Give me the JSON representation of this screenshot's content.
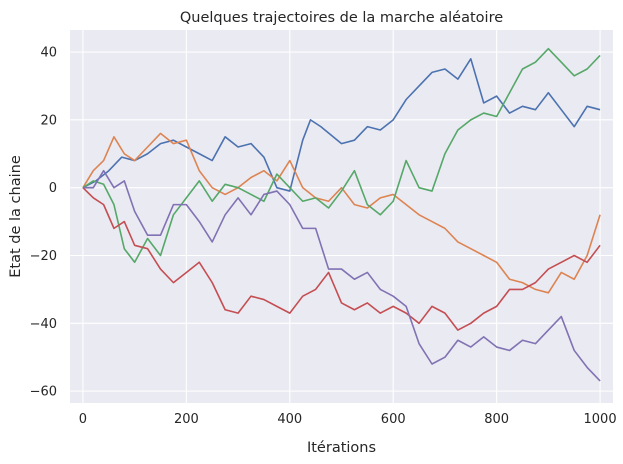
{
  "chart_data": {
    "type": "line",
    "title": "Quelques trajectoires de la marche aléatoire",
    "xlabel": "Itérations",
    "ylabel": "Etat de la chaine",
    "xlim": [
      -25,
      1025
    ],
    "ylim": [
      -63.5,
      46.5
    ],
    "xticks": [
      0,
      200,
      400,
      600,
      800,
      1000
    ],
    "yticks": [
      -60,
      -40,
      -20,
      0,
      20,
      40
    ],
    "grid": true,
    "legend": "none",
    "plot_background": "#eaeaf2",
    "series": [
      {
        "color": "#4c72b0",
        "x": [
          0,
          25,
          50,
          75,
          100,
          125,
          150,
          175,
          200,
          225,
          250,
          275,
          300,
          325,
          350,
          375,
          400,
          425,
          440,
          460,
          500,
          525,
          550,
          575,
          600,
          625,
          650,
          675,
          700,
          725,
          750,
          775,
          800,
          825,
          850,
          875,
          900,
          925,
          950,
          975,
          1000
        ],
        "y": [
          0,
          2,
          5,
          9,
          8,
          10,
          13,
          14,
          12,
          10,
          8,
          15,
          12,
          13,
          9,
          0,
          -1,
          14,
          20,
          18,
          13,
          14,
          18,
          17,
          20,
          26,
          30,
          34,
          35,
          32,
          38,
          25,
          27,
          22,
          24,
          23,
          28,
          23,
          18,
          24,
          23
        ]
      },
      {
        "color": "#dd8452",
        "x": [
          0,
          20,
          40,
          60,
          80,
          100,
          125,
          150,
          175,
          200,
          225,
          250,
          275,
          300,
          325,
          350,
          375,
          400,
          425,
          450,
          475,
          500,
          525,
          550,
          575,
          600,
          625,
          650,
          675,
          700,
          725,
          750,
          775,
          800,
          825,
          850,
          875,
          900,
          925,
          950,
          975,
          1000
        ],
        "y": [
          0,
          5,
          8,
          15,
          10,
          8,
          12,
          16,
          13,
          14,
          5,
          0,
          -2,
          0,
          3,
          5,
          2,
          8,
          0,
          -3,
          -4,
          0,
          -5,
          -6,
          -3,
          -2,
          -5,
          -8,
          -10,
          -12,
          -16,
          -18,
          -20,
          -22,
          -27,
          -28,
          -30,
          -31,
          -25,
          -27,
          -20,
          -8
        ]
      },
      {
        "color": "#55a868",
        "x": [
          0,
          20,
          40,
          60,
          80,
          100,
          125,
          150,
          175,
          200,
          225,
          250,
          275,
          300,
          325,
          350,
          375,
          400,
          425,
          450,
          475,
          500,
          525,
          550,
          575,
          600,
          625,
          650,
          675,
          700,
          725,
          750,
          775,
          800,
          825,
          850,
          875,
          900,
          925,
          950,
          975,
          1000
        ],
        "y": [
          0,
          2,
          1,
          -5,
          -18,
          -22,
          -15,
          -20,
          -8,
          -3,
          2,
          -4,
          1,
          0,
          -2,
          -4,
          4,
          0,
          -4,
          -3,
          -6,
          -1,
          5,
          -5,
          -8,
          -4,
          8,
          0,
          -1,
          10,
          17,
          20,
          22,
          21,
          28,
          35,
          37,
          41,
          37,
          33,
          35,
          39
        ]
      },
      {
        "color": "#c44e52",
        "x": [
          0,
          20,
          40,
          60,
          80,
          100,
          125,
          150,
          175,
          200,
          225,
          250,
          275,
          300,
          325,
          350,
          375,
          400,
          425,
          450,
          475,
          500,
          525,
          550,
          575,
          600,
          625,
          650,
          675,
          700,
          725,
          750,
          775,
          800,
          825,
          850,
          875,
          900,
          925,
          950,
          975,
          1000
        ],
        "y": [
          0,
          -3,
          -5,
          -12,
          -10,
          -17,
          -18,
          -24,
          -28,
          -25,
          -22,
          -28,
          -36,
          -37,
          -32,
          -33,
          -35,
          -37,
          -32,
          -30,
          -25,
          -34,
          -36,
          -34,
          -37,
          -35,
          -37,
          -40,
          -35,
          -37,
          -42,
          -40,
          -37,
          -35,
          -30,
          -30,
          -28,
          -24,
          -22,
          -20,
          -22,
          -17
        ]
      },
      {
        "color": "#8172b3",
        "x": [
          0,
          20,
          40,
          60,
          80,
          100,
          125,
          150,
          175,
          200,
          225,
          250,
          275,
          300,
          325,
          350,
          375,
          400,
          425,
          450,
          475,
          500,
          525,
          550,
          575,
          600,
          625,
          650,
          675,
          700,
          725,
          750,
          775,
          800,
          825,
          850,
          875,
          900,
          925,
          950,
          975,
          1000
        ],
        "y": [
          0,
          0,
          5,
          0,
          2,
          -7,
          -14,
          -14,
          -5,
          -5,
          -10,
          -16,
          -8,
          -3,
          -8,
          -2,
          -1,
          -5,
          -12,
          -12,
          -24,
          -24,
          -27,
          -25,
          -30,
          -32,
          -35,
          -46,
          -52,
          -50,
          -45,
          -47,
          -44,
          -47,
          -48,
          -45,
          -46,
          -42,
          -38,
          -48,
          -53,
          -57
        ]
      }
    ]
  }
}
